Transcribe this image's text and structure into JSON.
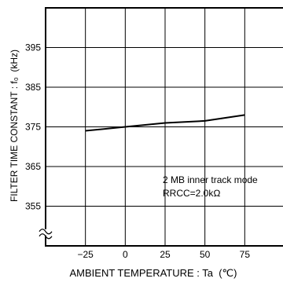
{
  "chart_data": {
    "type": "line",
    "title": "",
    "xlabel": "AMBIENT TEMPERATURE : Ta  (℃)",
    "ylabel": "FILTER TIME CONSTANT : f₀  (kHz)",
    "x_ticks": [
      -25,
      0,
      25,
      50,
      75
    ],
    "x_tick_labels": [
      "−25",
      "0",
      "25",
      "50",
      "75"
    ],
    "y_ticks": [
      355,
      365,
      375,
      385,
      395
    ],
    "y_tick_labels": [
      "355",
      "365",
      "375",
      "385",
      "395"
    ],
    "xlim": [
      -50,
      100
    ],
    "ylim": [
      345,
      405
    ],
    "grid": true,
    "y_axis_break": true,
    "series": [
      {
        "x": [
          -25,
          0,
          25,
          50,
          75
        ],
        "y": [
          374,
          375,
          376,
          376.5,
          378
        ]
      }
    ],
    "annotations": [
      "2 MB inner track mode",
      "RRCC=2.0kΩ"
    ],
    "colors": {
      "line": "#000000",
      "grid": "#000000"
    }
  }
}
